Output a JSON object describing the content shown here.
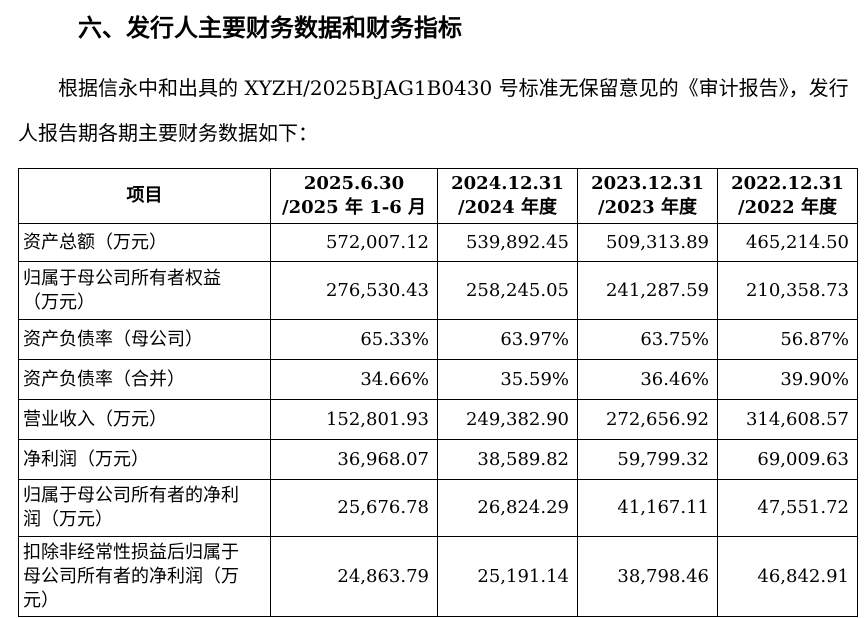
{
  "header": {
    "title": "六、发行人主要财务数据和财务指标"
  },
  "paragraph": "根据信永中和出具的 XYZH/2025BJAG1B0430 号标准无保留意见的《审计报告》，发行人报告期各期主要财务数据如下：",
  "table": {
    "columns": [
      [
        "项目"
      ],
      [
        "2025.6.30",
        "/2025 年 1-6 月"
      ],
      [
        "2024.12.31",
        "/2024 年度"
      ],
      [
        "2023.12.31",
        "/2023 年度"
      ],
      [
        "2022.12.31",
        "/2022 年度"
      ]
    ],
    "rows": [
      [
        "资产总额（万元）",
        "572,007.12",
        "539,892.45",
        "509,313.89",
        "465,214.50"
      ],
      [
        "归属于母公司所有者权益（万元）",
        "276,530.43",
        "258,245.05",
        "241,287.59",
        "210,358.73"
      ],
      [
        "资产负债率（母公司）",
        "65.33%",
        "63.97%",
        "63.75%",
        "56.87%"
      ],
      [
        "资产负债率（合并）",
        "34.66%",
        "35.59%",
        "36.46%",
        "39.90%"
      ],
      [
        "营业收入（万元）",
        "152,801.93",
        "249,382.90",
        "272,656.92",
        "314,608.57"
      ],
      [
        "净利润（万元）",
        "36,968.07",
        "38,589.82",
        "59,799.32",
        "69,009.63"
      ],
      [
        "归属于母公司所有者的净利润（万元）",
        "25,676.78",
        "26,824.29",
        "41,167.11",
        "47,551.72"
      ],
      [
        "扣除非经常性损益后归属于母公司所有者的净利润（万元）",
        "24,863.79",
        "25,191.14",
        "38,798.46",
        "46,842.91"
      ]
    ]
  }
}
